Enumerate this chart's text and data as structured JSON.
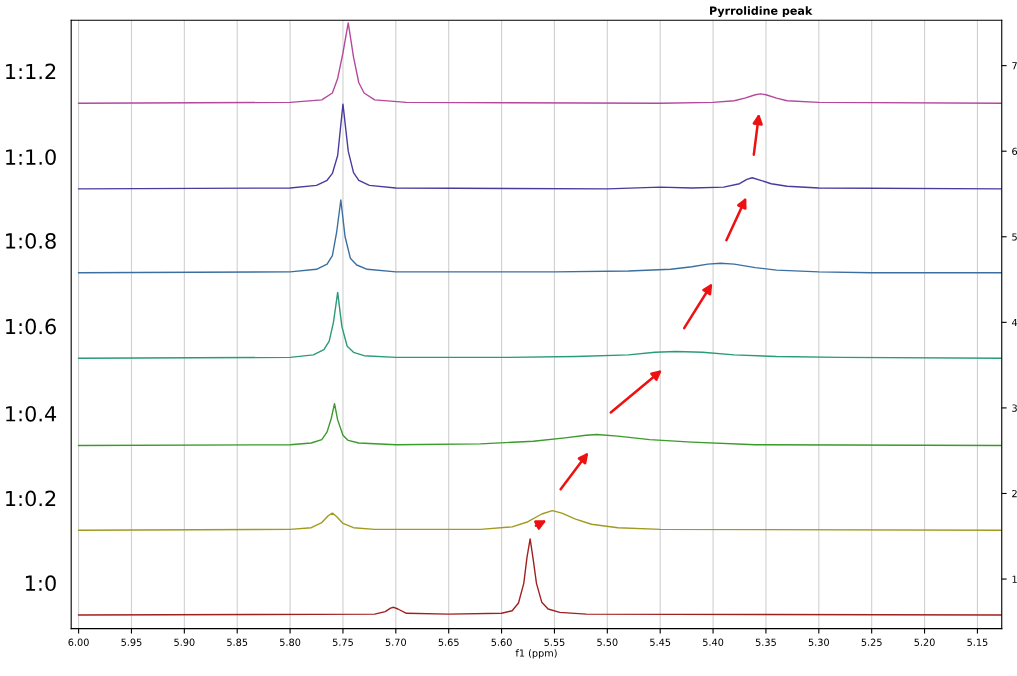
{
  "chart_data": {
    "type": "line",
    "xlabel": "f1 (ppm)",
    "xlim": [
      6.007,
      5.127
    ],
    "xticks": [
      {
        "value": 6.0,
        "label": "6.00"
      },
      {
        "value": 5.95,
        "label": "5.95"
      },
      {
        "value": 5.9,
        "label": "5.90"
      },
      {
        "value": 5.85,
        "label": "5.85"
      },
      {
        "value": 5.8,
        "label": "5.80"
      },
      {
        "value": 5.75,
        "label": "5.75"
      },
      {
        "value": 5.7,
        "label": "5.70"
      },
      {
        "value": 5.65,
        "label": "5.65"
      },
      {
        "value": 5.6,
        "label": "5.60"
      },
      {
        "value": 5.55,
        "label": "5.55"
      },
      {
        "value": 5.5,
        "label": "5.50"
      },
      {
        "value": 5.45,
        "label": "5.45"
      },
      {
        "value": 5.4,
        "label": "5.40"
      },
      {
        "value": 5.35,
        "label": "5.35"
      },
      {
        "value": 5.3,
        "label": "5.30"
      },
      {
        "value": 5.25,
        "label": "5.25"
      },
      {
        "value": 5.2,
        "label": "5.20"
      },
      {
        "value": 5.15,
        "label": "5.15"
      }
    ],
    "ylim": [
      0.42,
      7.53
    ],
    "yticks": [
      1,
      2,
      3,
      4,
      5,
      6,
      7
    ],
    "grid": "x",
    "annotations": [
      "Pyrrolidine peak"
    ],
    "series": [
      {
        "name": "1:1.2",
        "color": "#b4489c",
        "x": [
          6.0,
          5.8,
          5.77,
          5.76,
          5.755,
          5.75,
          5.745,
          5.74,
          5.735,
          5.73,
          5.72,
          5.69,
          5.45,
          5.4,
          5.38,
          5.37,
          5.36,
          5.355,
          5.35,
          5.34,
          5.33,
          5.3,
          5.127
        ],
        "values": [
          6.56,
          6.57,
          6.6,
          6.68,
          6.85,
          7.15,
          7.5,
          7.1,
          6.8,
          6.68,
          6.6,
          6.57,
          6.56,
          6.57,
          6.59,
          6.62,
          6.66,
          6.67,
          6.66,
          6.62,
          6.59,
          6.57,
          6.56
        ]
      },
      {
        "name": "1:1.0",
        "color": "#4a3a9c",
        "x": [
          6.0,
          5.8,
          5.775,
          5.765,
          5.76,
          5.755,
          5.75,
          5.745,
          5.74,
          5.735,
          5.725,
          5.7,
          5.5,
          5.45,
          5.42,
          5.39,
          5.375,
          5.368,
          5.363,
          5.355,
          5.345,
          5.33,
          5.3,
          5.127
        ],
        "values": [
          5.56,
          5.57,
          5.6,
          5.66,
          5.74,
          5.95,
          6.55,
          6.0,
          5.75,
          5.66,
          5.6,
          5.57,
          5.56,
          5.58,
          5.57,
          5.58,
          5.62,
          5.67,
          5.69,
          5.66,
          5.62,
          5.59,
          5.57,
          5.56
        ]
      },
      {
        "name": "1:0.8",
        "color": "#3a6fa0",
        "x": [
          6.0,
          5.8,
          5.775,
          5.765,
          5.76,
          5.756,
          5.752,
          5.748,
          5.743,
          5.737,
          5.727,
          5.7,
          5.55,
          5.48,
          5.44,
          5.42,
          5.405,
          5.393,
          5.38,
          5.36,
          5.34,
          5.3,
          5.25,
          5.127
        ],
        "values": [
          4.58,
          4.59,
          4.62,
          4.68,
          4.78,
          5.05,
          5.43,
          5.0,
          4.75,
          4.67,
          4.62,
          4.59,
          4.59,
          4.6,
          4.62,
          4.65,
          4.68,
          4.69,
          4.68,
          4.64,
          4.61,
          4.59,
          4.58,
          4.58
        ]
      },
      {
        "name": "1:0.6",
        "color": "#2a9a7a",
        "x": [
          6.0,
          5.8,
          5.778,
          5.768,
          5.763,
          5.759,
          5.755,
          5.751,
          5.746,
          5.74,
          5.73,
          5.7,
          5.6,
          5.53,
          5.48,
          5.455,
          5.435,
          5.41,
          5.38,
          5.34,
          5.28,
          5.127
        ],
        "values": [
          3.58,
          3.59,
          3.62,
          3.68,
          3.78,
          4.0,
          4.35,
          3.95,
          3.72,
          3.65,
          3.61,
          3.59,
          3.59,
          3.6,
          3.62,
          3.65,
          3.66,
          3.65,
          3.62,
          3.6,
          3.59,
          3.58
        ]
      },
      {
        "name": "1:0.4",
        "color": "#3a9a2a",
        "x": [
          6.0,
          5.8,
          5.78,
          5.77,
          5.765,
          5.761,
          5.758,
          5.755,
          5.75,
          5.745,
          5.735,
          5.7,
          5.62,
          5.57,
          5.54,
          5.52,
          5.51,
          5.49,
          5.46,
          5.42,
          5.36,
          5.127
        ],
        "values": [
          2.56,
          2.57,
          2.59,
          2.63,
          2.72,
          2.88,
          3.05,
          2.86,
          2.68,
          2.62,
          2.59,
          2.57,
          2.58,
          2.61,
          2.65,
          2.68,
          2.69,
          2.67,
          2.63,
          2.6,
          2.57,
          2.56
        ]
      },
      {
        "name": "1:0.2",
        "color": "#a09a20",
        "x": [
          6.0,
          5.8,
          5.78,
          5.77,
          5.764,
          5.76,
          5.756,
          5.75,
          5.74,
          5.72,
          5.62,
          5.59,
          5.575,
          5.562,
          5.552,
          5.543,
          5.53,
          5.515,
          5.49,
          5.45,
          5.127
        ],
        "values": [
          1.57,
          1.58,
          1.6,
          1.66,
          1.74,
          1.77,
          1.73,
          1.65,
          1.6,
          1.58,
          1.58,
          1.61,
          1.67,
          1.76,
          1.8,
          1.77,
          1.7,
          1.64,
          1.6,
          1.58,
          1.57
        ]
      },
      {
        "name": "1:0",
        "color": "#a02020",
        "x": [
          6.0,
          5.72,
          5.71,
          5.705,
          5.702,
          5.698,
          5.69,
          5.65,
          5.6,
          5.59,
          5.584,
          5.579,
          5.576,
          5.573,
          5.57,
          5.567,
          5.562,
          5.556,
          5.545,
          5.52,
          5.127
        ],
        "values": [
          0.58,
          0.59,
          0.62,
          0.66,
          0.67,
          0.65,
          0.6,
          0.59,
          0.6,
          0.63,
          0.72,
          0.95,
          1.25,
          1.47,
          1.22,
          0.95,
          0.73,
          0.65,
          0.61,
          0.59,
          0.58
        ]
      }
    ]
  }
}
